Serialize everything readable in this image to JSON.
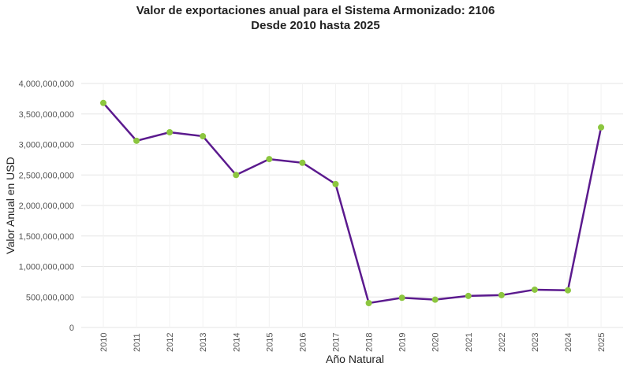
{
  "chart_data": {
    "type": "line",
    "title": "Valor de exportaciones anual para el Sistema Armonizado: 2106",
    "subtitle": "Desde 2010 hasta 2025",
    "xlabel": "Año Natural",
    "ylabel": "Valor Anual en USD",
    "x": [
      "2010",
      "2011",
      "2012",
      "2013",
      "2014",
      "2015",
      "2016",
      "2017",
      "2018",
      "2019",
      "2020",
      "2021",
      "2022",
      "2023",
      "2024",
      "2025"
    ],
    "values": [
      3680000000,
      3060000000,
      3200000000,
      3135000000,
      2500000000,
      2760000000,
      2700000000,
      2350000000,
      400000000,
      487000000,
      456000000,
      517000000,
      530000000,
      620000000,
      610000000,
      3280000000
    ],
    "ylim": [
      0,
      4000000000
    ],
    "yticks": [
      "0",
      "500,000,000",
      "1,000,000,000",
      "1,500,000,000",
      "2,000,000,000",
      "2,500,000,000",
      "3,000,000,000",
      "3,500,000,000",
      "4,000,000,000"
    ],
    "grid": true,
    "line_color": "#5b1a8e",
    "marker_color": "#8cc63f"
  }
}
